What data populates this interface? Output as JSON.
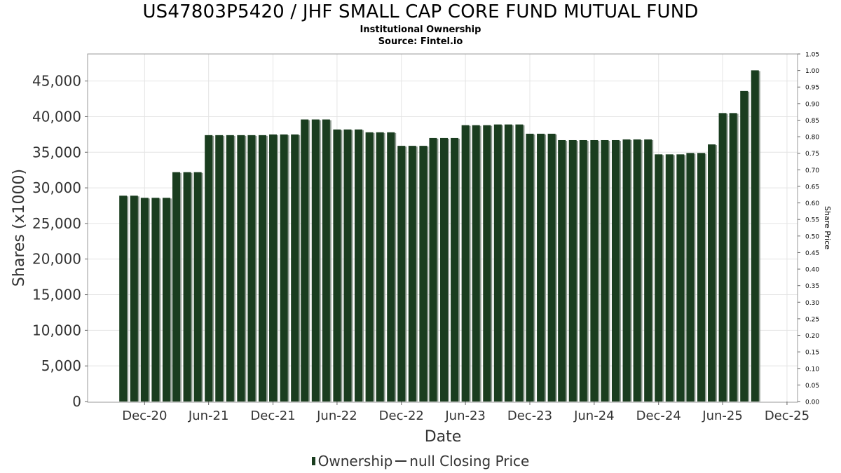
{
  "chart_data": {
    "type": "bar",
    "title": "US47803P5420 / JHF SMALL CAP CORE FUND MUTUAL FUND",
    "subtitle": "Institutional Ownership",
    "source": "Source: Fintel.io",
    "xlabel": "Date",
    "ylabel": "Shares (x1000)",
    "y2label": "Share Price",
    "ylim": [
      0,
      48800
    ],
    "y2lim": [
      0,
      1.05
    ],
    "y_ticks": [
      0,
      5000,
      10000,
      15000,
      20000,
      25000,
      30000,
      35000,
      40000,
      45000
    ],
    "y_tick_labels": [
      "0",
      "5,000",
      "10,000",
      "15,000",
      "20,000",
      "25,000",
      "30,000",
      "35,000",
      "40,000",
      "45,000"
    ],
    "y2_tick_labels": [
      "0.00",
      "0.05",
      "0.10",
      "0.15",
      "0.20",
      "0.25",
      "0.30",
      "0.35",
      "0.40",
      "0.45",
      "0.50",
      "0.55",
      "0.60",
      "0.65",
      "0.70",
      "0.75",
      "0.80",
      "0.85",
      "0.90",
      "0.95",
      "1.00",
      "1.05"
    ],
    "x_range": [
      "2020-06-22",
      "2025-12-31"
    ],
    "x_ticks": [
      "2020-12-01",
      "2021-06-01",
      "2021-12-01",
      "2022-06-01",
      "2022-12-01",
      "2023-06-01",
      "2023-12-01",
      "2024-06-01",
      "2024-12-01",
      "2025-06-01",
      "2025-12-01"
    ],
    "x_tick_labels": [
      "Dec-20",
      "Jun-21",
      "Dec-21",
      "Jun-22",
      "Dec-22",
      "Jun-23",
      "Dec-23",
      "Jun-24",
      "Dec-24",
      "Jun-25",
      "Dec-25"
    ],
    "grid": true,
    "legend": {
      "placement": "bottom-center",
      "entries": [
        {
          "label": "Ownership",
          "marker": "bar"
        },
        {
          "label": "null Closing Price",
          "marker": "line"
        }
      ]
    },
    "series": [
      {
        "name": "Ownership",
        "color": "#1a3d1f",
        "x": [
          "2020-10-01",
          "2020-11-01",
          "2020-12-01",
          "2021-01-01",
          "2021-02-01",
          "2021-03-01",
          "2021-04-01",
          "2021-05-01",
          "2021-06-01",
          "2021-07-01",
          "2021-08-01",
          "2021-09-01",
          "2021-10-01",
          "2021-11-01",
          "2021-12-01",
          "2022-01-01",
          "2022-02-01",
          "2022-03-01",
          "2022-04-01",
          "2022-05-01",
          "2022-06-01",
          "2022-07-01",
          "2022-08-01",
          "2022-09-01",
          "2022-10-01",
          "2022-11-01",
          "2022-12-01",
          "2023-01-01",
          "2023-02-01",
          "2023-03-01",
          "2023-04-01",
          "2023-05-01",
          "2023-06-01",
          "2023-07-01",
          "2023-08-01",
          "2023-09-01",
          "2023-10-01",
          "2023-11-01",
          "2023-12-01",
          "2024-01-01",
          "2024-02-01",
          "2024-03-01",
          "2024-04-01",
          "2024-05-01",
          "2024-06-01",
          "2024-07-01",
          "2024-08-01",
          "2024-09-01",
          "2024-10-01",
          "2024-11-01",
          "2024-12-01",
          "2025-01-01",
          "2025-02-01",
          "2025-03-01",
          "2025-04-01",
          "2025-05-01",
          "2025-06-01",
          "2025-07-01",
          "2025-08-01",
          "2025-09-01"
        ],
        "values": [
          28900,
          28900,
          28600,
          28600,
          28600,
          32200,
          32200,
          32200,
          37400,
          37400,
          37400,
          37400,
          37400,
          37400,
          37500,
          37500,
          37500,
          39600,
          39600,
          39600,
          38200,
          38200,
          38200,
          37800,
          37800,
          37800,
          35900,
          35900,
          35900,
          37000,
          37000,
          37000,
          38800,
          38800,
          38800,
          38900,
          38900,
          38900,
          37600,
          37600,
          37600,
          36700,
          36700,
          36700,
          36700,
          36700,
          36700,
          36800,
          36800,
          36800,
          34700,
          34700,
          34700,
          34900,
          34900,
          36100,
          40500,
          40500,
          43600,
          46500
        ]
      }
    ]
  }
}
